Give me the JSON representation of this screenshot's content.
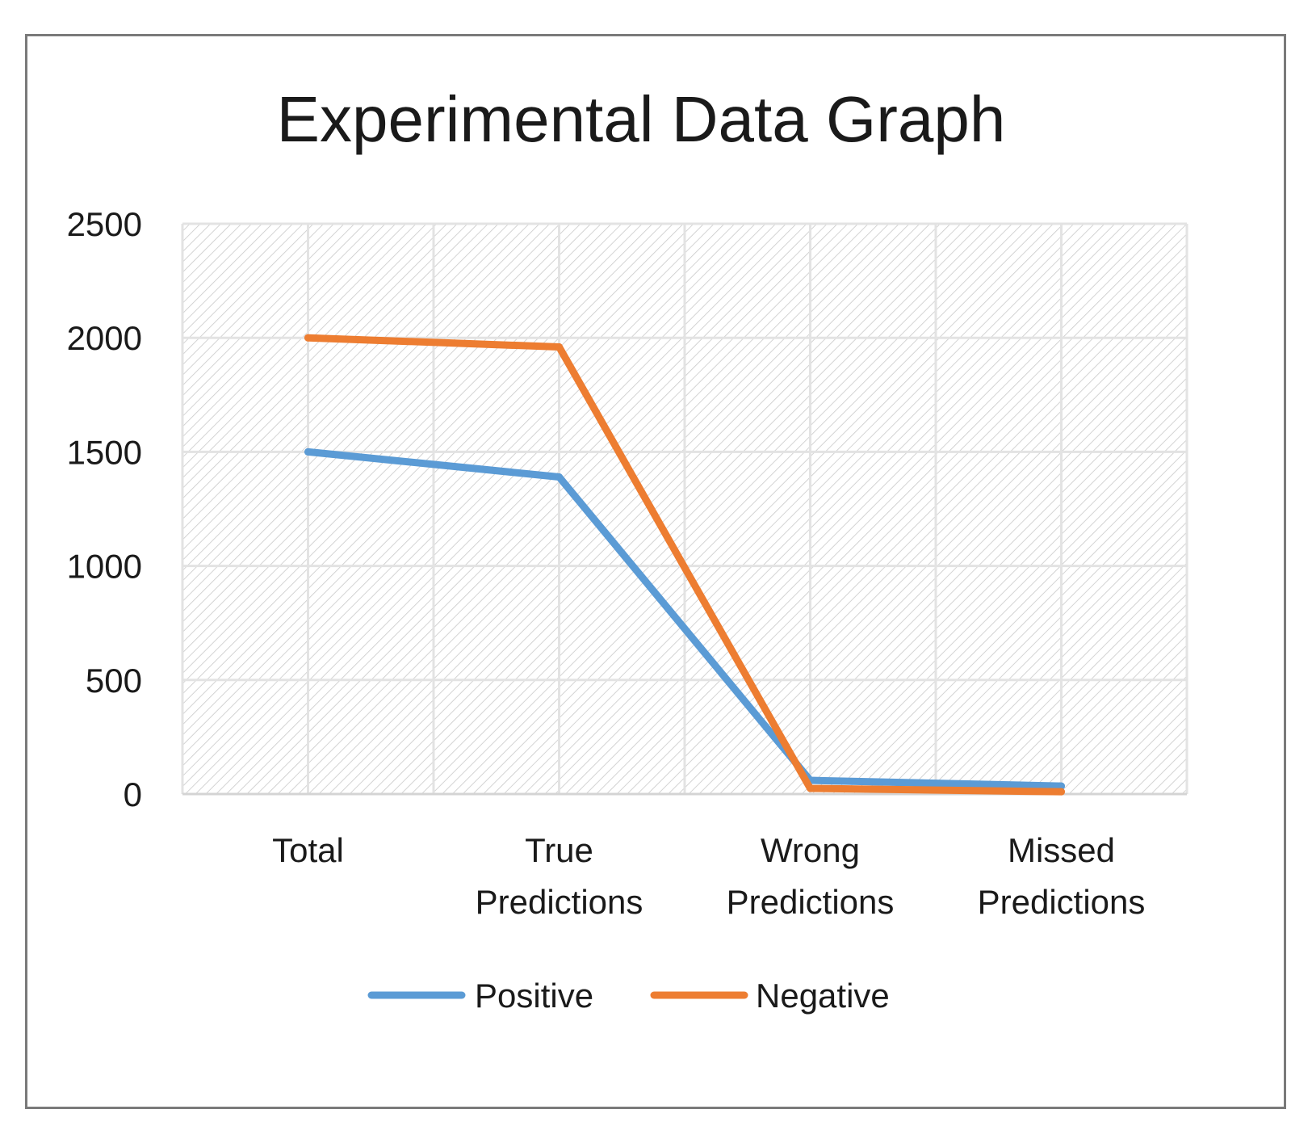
{
  "chart_data": {
    "type": "line",
    "title": "Experimental Data Graph",
    "categories": [
      [
        "Total"
      ],
      [
        "True",
        "Predictions"
      ],
      [
        "Wrong",
        "Predictions"
      ],
      [
        "Missed",
        "Predictions"
      ]
    ],
    "series": [
      {
        "name": "Positive",
        "color": "#5b9bd5",
        "values": [
          1500,
          1390,
          60,
          35
        ]
      },
      {
        "name": "Negative",
        "color": "#ed7d31",
        "values": [
          2000,
          1960,
          25,
          10
        ]
      }
    ],
    "ylim": [
      0,
      2500
    ],
    "yticks": [
      0,
      500,
      1000,
      1500,
      2000,
      2500
    ],
    "xlabel": "",
    "ylabel": "",
    "grid": true,
    "legend": "bottom"
  }
}
